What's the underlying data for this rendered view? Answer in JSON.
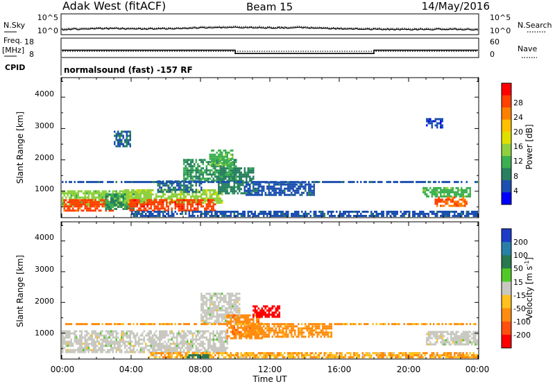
{
  "header": {
    "station": "Adak West (fitACF)",
    "beam": "Beam 15",
    "date": "14/May/2016"
  },
  "noise_panel": {
    "left_label": "N.Sky",
    "right_label": "N.Search",
    "left_ticks": [
      "10^5",
      "10^0"
    ],
    "right_ticks": [
      "10^5",
      "10^0"
    ]
  },
  "freq_panel": {
    "left_label_1": "Freq.",
    "left_label_2": "[MHz]",
    "right_label": "Nave",
    "left_ticks": [
      "18",
      "8"
    ],
    "right_ticks": [
      "60",
      "0"
    ]
  },
  "cpid": {
    "label": "CPID",
    "text": "normalsound (fast) -157 RF"
  },
  "range_axis": {
    "label": "Slant Range [km]",
    "ticks": [
      "4000",
      "3000",
      "2000",
      "1000"
    ]
  },
  "time_axis": {
    "label": "Time UT",
    "ticks": [
      "00:00",
      "04:00",
      "08:00",
      "12:00",
      "16:00",
      "20:00",
      "00:00"
    ]
  },
  "power_scale": {
    "title": "Power [dB]",
    "ticks": [
      "28",
      "24",
      "20",
      "16",
      "12",
      "8",
      "4"
    ],
    "colors": [
      "#ff0000",
      "#ff4000",
      "#ff8000",
      "#ffc000",
      "#e0e000",
      "#8fd040",
      "#3cb050",
      "#288060",
      "#1c50b0",
      "#0000ff"
    ]
  },
  "velocity_scale": {
    "title_main": "Velocity [m s",
    "title_sup": "-1",
    "title_end": "]",
    "ticks": [
      "200",
      "100",
      "50",
      "15",
      "-15",
      "-50",
      "-100",
      "-200"
    ],
    "colors": [
      "#1c3cc8",
      "#2880a8",
      "#287850",
      "#50c828",
      "#c8c8c0",
      "#ffc020",
      "#ff8c10",
      "#ff5010",
      "#ff0000"
    ]
  },
  "chart_data": [
    {
      "type": "line",
      "name": "noise",
      "x_unit": "hours UT",
      "x": [
        0,
        2,
        4,
        6,
        8,
        10,
        12,
        14,
        16,
        18,
        20,
        22,
        24
      ],
      "y": [
        1.0,
        1.3,
        1.2,
        1.2,
        1.5,
        1.6,
        1.5,
        1.5,
        1.2,
        1.1,
        1.0,
        1.1,
        1.0
      ],
      "ylim": [
        0,
        5
      ],
      "yscale": "log10"
    },
    {
      "type": "line",
      "name": "frequency",
      "x_unit": "hours UT",
      "x": [
        0,
        10,
        10,
        18,
        18,
        24
      ],
      "y": [
        12,
        12,
        10,
        10,
        12,
        12
      ],
      "ylim": [
        8,
        18
      ]
    },
    {
      "type": "heatmap",
      "name": "power",
      "x_unit": "hours UT",
      "y_unit": "km",
      "xlim": [
        0,
        24
      ],
      "ylim": [
        180,
        4600
      ],
      "clim": [
        0,
        30
      ],
      "regions": [
        {
          "t": [
            0.0,
            5.0
          ],
          "r": [
            500,
            1000
          ],
          "v": 13
        },
        {
          "t": [
            0.1,
            3.0
          ],
          "r": [
            350,
            700
          ],
          "v": 25
        },
        {
          "t": [
            2.5,
            4.2
          ],
          "r": [
            400,
            900
          ],
          "v": 9
        },
        {
          "t": [
            3.6,
            9.2
          ],
          "r": [
            600,
            1000
          ],
          "v": 14
        },
        {
          "t": [
            3.8,
            8.8
          ],
          "r": [
            350,
            700
          ],
          "v": 26
        },
        {
          "t": [
            5.5,
            8.0
          ],
          "r": [
            950,
            1300
          ],
          "v": 6
        },
        {
          "t": [
            7.0,
            10.0
          ],
          "r": [
            1300,
            2000
          ],
          "v": 9
        },
        {
          "t": [
            8.5,
            9.8
          ],
          "r": [
            1800,
            2300
          ],
          "v": 11
        },
        {
          "t": [
            9.0,
            11.0
          ],
          "r": [
            900,
            1700
          ],
          "v": 8
        },
        {
          "t": [
            10.5,
            14.5
          ],
          "r": [
            850,
            1250
          ],
          "v": 5
        },
        {
          "t": [
            20.8,
            23.6
          ],
          "r": [
            800,
            1100
          ],
          "v": 11
        },
        {
          "t": [
            21.5,
            23.4
          ],
          "r": [
            500,
            800
          ],
          "v": 24
        },
        {
          "t": [
            0.0,
            24.0
          ],
          "r": [
            1260,
            1300
          ],
          "v": 5
        },
        {
          "t": [
            4.0,
            24.0
          ],
          "r": [
            180,
            320
          ],
          "v": 5
        },
        {
          "t": [
            3.0,
            4.0
          ],
          "r": [
            2400,
            2900
          ],
          "v": 6
        },
        {
          "t": [
            21.0,
            22.0
          ],
          "r": [
            3000,
            3300
          ],
          "v": 4
        }
      ]
    },
    {
      "type": "heatmap",
      "name": "velocity",
      "x_unit": "hours UT",
      "y_unit": "km",
      "xlim": [
        0,
        24
      ],
      "ylim": [
        180,
        4600
      ],
      "clim": [
        -200,
        200
      ],
      "regions": [
        {
          "t": [
            0.0,
            9.5
          ],
          "r": [
            350,
            1050
          ],
          "v": 0
        },
        {
          "t": [
            8.0,
            10.2
          ],
          "r": [
            1300,
            2300
          ],
          "v": 0
        },
        {
          "t": [
            9.5,
            11.5
          ],
          "r": [
            800,
            1600
          ],
          "v": -60
        },
        {
          "t": [
            10.5,
            15.5
          ],
          "r": [
            850,
            1250
          ],
          "v": -45
        },
        {
          "t": [
            11.0,
            12.5
          ],
          "r": [
            1500,
            1900
          ],
          "v": -200
        },
        {
          "t": [
            21.0,
            24.0
          ],
          "r": [
            600,
            1050
          ],
          "v": 0
        },
        {
          "t": [
            0.0,
            24.0
          ],
          "r": [
            1260,
            1300
          ],
          "v": -40
        },
        {
          "t": [
            5.0,
            24.0
          ],
          "r": [
            180,
            320
          ],
          "v": -30
        },
        {
          "t": [
            7.2,
            8.4
          ],
          "r": [
            180,
            300
          ],
          "v": 50
        }
      ]
    }
  ]
}
